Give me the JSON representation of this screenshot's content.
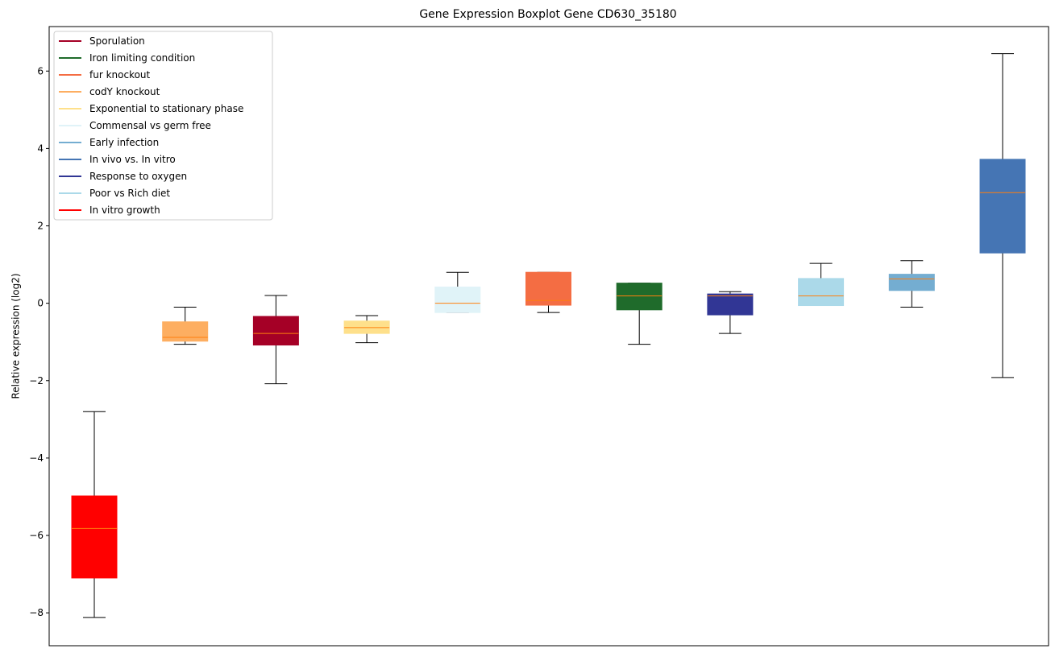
{
  "chart_data": {
    "type": "boxplot",
    "title": "Gene Expression Boxplot Gene CD630_35180",
    "xlabel": "",
    "ylabel": "Relative expression (log2)",
    "ylim": [
      -8.85,
      7.15
    ],
    "yticks": [
      -8,
      -6,
      -4,
      -2,
      0,
      2,
      4,
      6
    ],
    "ytick_labels": [
      "−8",
      "−6",
      "−4",
      "−2",
      "0",
      "2",
      "4",
      "6"
    ],
    "median_color": "#ff7f0e",
    "whisker_color": "#000000",
    "legend": {
      "position": "top-left",
      "entries": [
        {
          "label": "Sporulation",
          "color": "#a50026"
        },
        {
          "label": "Iron limiting condition",
          "color": "#1f6b2b"
        },
        {
          "label": "fur knockout",
          "color": "#f46d43"
        },
        {
          "label": "codY knockout",
          "color": "#fdae61"
        },
        {
          "label": "Exponential to stationary phase",
          "color": "#fee08b"
        },
        {
          "label": "Commensal vs germ free",
          "color": "#e0f3f8"
        },
        {
          "label": "Early infection",
          "color": "#74add1"
        },
        {
          "label": "In vivo vs. In vitro",
          "color": "#4575b4"
        },
        {
          "label": "Response to oxygen",
          "color": "#313695"
        },
        {
          "label": "Poor vs Rich diet",
          "color": "#abd9e9"
        },
        {
          "label": "In vitro growth",
          "color": "#ff0000"
        }
      ]
    },
    "boxes": [
      {
        "group": "In vitro growth",
        "color": "#ff0000",
        "whislo": -8.12,
        "q1": -7.1,
        "med": -5.82,
        "q3": -4.98,
        "whishi": -2.8
      },
      {
        "group": "codY knockout",
        "color": "#fdae61",
        "whislo": -1.06,
        "q1": -0.98,
        "med": -0.88,
        "q3": -0.48,
        "whishi": -0.1
      },
      {
        "group": "Sporulation",
        "color": "#a50026",
        "whislo": -2.08,
        "q1": -1.08,
        "med": -0.78,
        "q3": -0.34,
        "whishi": 0.2
      },
      {
        "group": "Exponential to stationary phase",
        "color": "#fee08b",
        "whislo": -1.02,
        "q1": -0.78,
        "med": -0.63,
        "q3": -0.46,
        "whishi": -0.32
      },
      {
        "group": "Commensal vs germ free",
        "color": "#e0f3f8",
        "whislo": -0.24,
        "q1": -0.24,
        "med": 0.0,
        "q3": 0.42,
        "whishi": 0.8
      },
      {
        "group": "fur knockout",
        "color": "#f46d43",
        "whislo": -0.24,
        "q1": -0.05,
        "med": 0.07,
        "q3": 0.8,
        "whishi": 0.8
      },
      {
        "group": "Iron limiting condition",
        "color": "#1f6b2b",
        "whislo": -1.06,
        "q1": -0.17,
        "med": 0.19,
        "q3": 0.52,
        "whishi": 0.52
      },
      {
        "group": "Response to oxygen",
        "color": "#313695",
        "whislo": -0.78,
        "q1": -0.3,
        "med": 0.19,
        "q3": 0.24,
        "whishi": 0.3
      },
      {
        "group": "Poor vs Rich diet",
        "color": "#abd9e9",
        "whislo": -0.06,
        "q1": -0.06,
        "med": 0.19,
        "q3": 0.64,
        "whishi": 1.03
      },
      {
        "group": "Early infection",
        "color": "#74add1",
        "whislo": -0.1,
        "q1": 0.33,
        "med": 0.63,
        "q3": 0.75,
        "whishi": 1.1
      },
      {
        "group": "In vivo vs. In vitro",
        "color": "#4575b4",
        "whislo": -1.92,
        "q1": 1.3,
        "med": 2.86,
        "q3": 3.72,
        "whishi": 6.45
      }
    ]
  }
}
